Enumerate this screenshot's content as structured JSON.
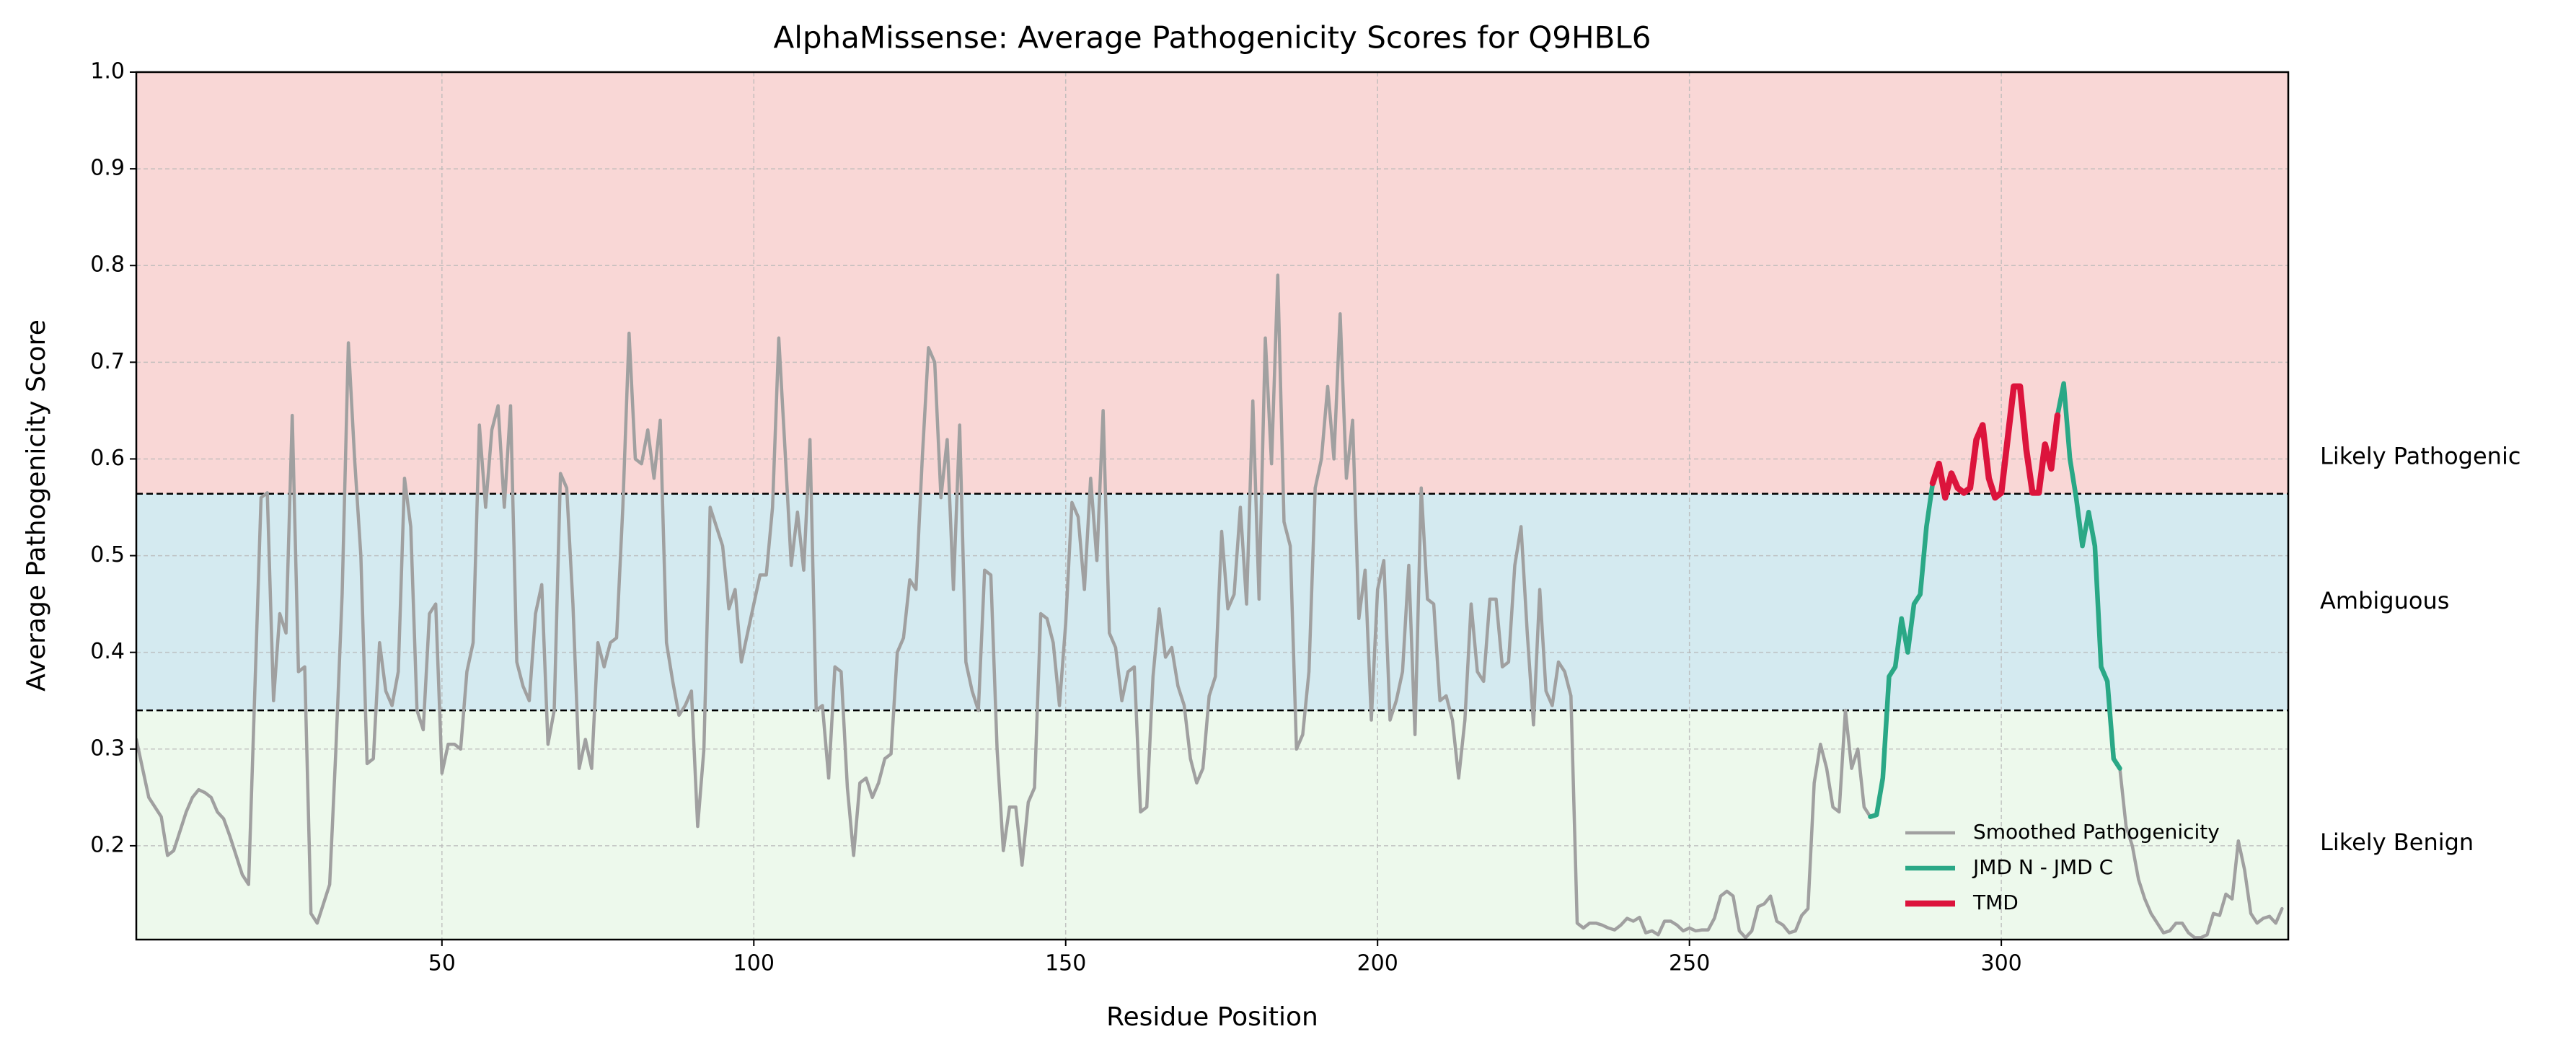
{
  "chart_data": {
    "type": "line",
    "title": "AlphaMissense: Average Pathogenicity Scores for Q9HBL6",
    "xlabel": "Residue Position",
    "ylabel": "Average Pathogenicity Score",
    "xlim": [
      1,
      346
    ],
    "ylim": [
      0.103,
      1.0
    ],
    "xticks": [
      50,
      100,
      150,
      200,
      250,
      300
    ],
    "yticks": [
      0.2,
      0.3,
      0.4,
      0.5,
      0.6,
      0.7,
      0.8,
      0.9,
      {
        "value": 1.0,
        "label": "1.0"
      }
    ],
    "grid": true,
    "legend": "lower right",
    "thresholds": [
      0.34,
      0.564
    ],
    "bands": [
      {
        "label": "Likely Benign",
        "color": "#edf9ec",
        "text_color": "#006400"
      },
      {
        "label": "Ambiguous",
        "color": "#d4eaf0",
        "text_color": "#000080"
      },
      {
        "label": "Likely Pathogenic",
        "color": "#f9d7d6",
        "text_color": "#8b0000"
      }
    ],
    "series": [
      {
        "name": "Smoothed Pathogenicity",
        "color": "#a0a0a0",
        "width": 4.5,
        "x": [
          1,
          2,
          3,
          4,
          5,
          6,
          7,
          8,
          9,
          10,
          11,
          12,
          13,
          14,
          15,
          16,
          17,
          18,
          19,
          20,
          21,
          22,
          23,
          24,
          25,
          26,
          27,
          28,
          29,
          30,
          31,
          32,
          33,
          34,
          35,
          36,
          37,
          38,
          39,
          40,
          41,
          42,
          43,
          44,
          45,
          46,
          47,
          48,
          49,
          50,
          51,
          52,
          53,
          54,
          55,
          56,
          57,
          58,
          59,
          60,
          61,
          62,
          63,
          64,
          65,
          66,
          67,
          68,
          69,
          70,
          71,
          72,
          73,
          74,
          75,
          76,
          77,
          78,
          79,
          80,
          81,
          82,
          83,
          84,
          85,
          86,
          87,
          88,
          89,
          90,
          91,
          92,
          93,
          94,
          95,
          96,
          97,
          98,
          99,
          100,
          101,
          102,
          103,
          104,
          105,
          106,
          107,
          108,
          109,
          110,
          111,
          112,
          113,
          114,
          115,
          116,
          117,
          118,
          119,
          120,
          121,
          122,
          123,
          124,
          125,
          126,
          127,
          128,
          129,
          130,
          131,
          132,
          133,
          134,
          135,
          136,
          137,
          138,
          139,
          140,
          141,
          142,
          143,
          144,
          145,
          146,
          147,
          148,
          149,
          150,
          151,
          152,
          153,
          154,
          155,
          156,
          157,
          158,
          159,
          160,
          161,
          162,
          163,
          164,
          165,
          166,
          167,
          168,
          169,
          170,
          171,
          172,
          173,
          174,
          175,
          176,
          177,
          178,
          179,
          180,
          181,
          182,
          183,
          184,
          185,
          186,
          187,
          188,
          189,
          190,
          191,
          192,
          193,
          194,
          195,
          196,
          197,
          198,
          199,
          200,
          201,
          202,
          203,
          204,
          205,
          206,
          207,
          208,
          209,
          210,
          211,
          212,
          213,
          214,
          215,
          216,
          217,
          218,
          219,
          220,
          221,
          222,
          223,
          224,
          225,
          226,
          227,
          228,
          229,
          230,
          231,
          232,
          233,
          234,
          235,
          236,
          237,
          238,
          239,
          240,
          241,
          242,
          243,
          244,
          245,
          246,
          247,
          248,
          249,
          250,
          251,
          252,
          253,
          254,
          255,
          256,
          257,
          258,
          259,
          260,
          261,
          262,
          263,
          264,
          265,
          266,
          267,
          268,
          269,
          270,
          271,
          272,
          273,
          274,
          275,
          276,
          277,
          278,
          279,
          280,
          281,
          282,
          283,
          284,
          285,
          286,
          287,
          288,
          289,
          290,
          291,
          292,
          293,
          294,
          295,
          296,
          297,
          298,
          299,
          300,
          301,
          302,
          303,
          304,
          305,
          306,
          307,
          308,
          309,
          310,
          311,
          312,
          313,
          314,
          315,
          316,
          317,
          318,
          319,
          320,
          321,
          322,
          323,
          324,
          325,
          326,
          327,
          328,
          329,
          330,
          331,
          332,
          333,
          334,
          335,
          336,
          337,
          338,
          339,
          340,
          341,
          342,
          343,
          344,
          345
        ],
        "values": [
          0.31,
          0.28,
          0.25,
          0.24,
          0.23,
          0.19,
          0.195,
          0.215,
          0.235,
          0.25,
          0.258,
          0.255,
          0.25,
          0.235,
          0.228,
          0.21,
          0.19,
          0.17,
          0.16,
          0.36,
          0.56,
          0.565,
          0.35,
          0.44,
          0.42,
          0.645,
          0.38,
          0.385,
          0.13,
          0.12,
          0.14,
          0.16,
          0.3,
          0.46,
          0.72,
          0.6,
          0.5,
          0.285,
          0.29,
          0.41,
          0.36,
          0.345,
          0.38,
          0.58,
          0.53,
          0.34,
          0.32,
          0.44,
          0.45,
          0.275,
          0.305,
          0.305,
          0.3,
          0.38,
          0.41,
          0.635,
          0.55,
          0.63,
          0.655,
          0.55,
          0.655,
          0.39,
          0.365,
          0.35,
          0.44,
          0.47,
          0.305,
          0.34,
          0.585,
          0.57,
          0.45,
          0.28,
          0.31,
          0.28,
          0.41,
          0.385,
          0.41,
          0.415,
          0.55,
          0.73,
          0.6,
          0.595,
          0.63,
          0.58,
          0.64,
          0.41,
          0.37,
          0.335,
          0.345,
          0.36,
          0.22,
          0.3,
          0.55,
          0.53,
          0.51,
          0.445,
          0.465,
          0.39,
          0.42,
          0.45,
          0.48,
          0.48,
          0.55,
          0.725,
          0.61,
          0.49,
          0.545,
          0.485,
          0.62,
          0.34,
          0.345,
          0.27,
          0.385,
          0.38,
          0.26,
          0.19,
          0.265,
          0.27,
          0.25,
          0.265,
          0.29,
          0.295,
          0.4,
          0.415,
          0.475,
          0.465,
          0.6,
          0.715,
          0.7,
          0.56,
          0.62,
          0.465,
          0.635,
          0.39,
          0.36,
          0.34,
          0.485,
          0.48,
          0.3,
          0.195,
          0.24,
          0.24,
          0.18,
          0.245,
          0.26,
          0.44,
          0.435,
          0.41,
          0.345,
          0.43,
          0.555,
          0.54,
          0.465,
          0.58,
          0.495,
          0.65,
          0.42,
          0.405,
          0.35,
          0.38,
          0.385,
          0.235,
          0.24,
          0.375,
          0.445,
          0.395,
          0.405,
          0.365,
          0.345,
          0.29,
          0.265,
          0.28,
          0.355,
          0.375,
          0.525,
          0.445,
          0.46,
          0.55,
          0.45,
          0.66,
          0.455,
          0.725,
          0.595,
          0.79,
          0.535,
          0.51,
          0.3,
          0.315,
          0.38,
          0.57,
          0.6,
          0.675,
          0.6,
          0.75,
          0.58,
          0.64,
          0.435,
          0.485,
          0.33,
          0.465,
          0.495,
          0.33,
          0.35,
          0.38,
          0.49,
          0.315,
          0.57,
          0.455,
          0.45,
          0.35,
          0.355,
          0.33,
          0.27,
          0.33,
          0.45,
          0.38,
          0.37,
          0.455,
          0.455,
          0.385,
          0.39,
          0.49,
          0.53,
          0.42,
          0.325,
          0.465,
          0.36,
          0.345,
          0.39,
          0.38,
          0.355,
          0.12,
          0.115,
          0.12,
          0.12,
          0.118,
          0.115,
          0.113,
          0.118,
          0.125,
          0.122,
          0.126,
          0.11,
          0.112,
          0.108,
          0.122,
          0.122,
          0.118,
          0.112,
          0.115,
          0.112,
          0.113,
          0.113,
          0.125,
          0.148,
          0.153,
          0.148,
          0.112,
          0.105,
          0.112,
          0.137,
          0.14,
          0.148,
          0.122,
          0.118,
          0.11,
          0.112,
          0.128,
          0.135,
          0.265,
          0.305,
          0.28,
          0.24,
          0.235,
          0.34,
          0.28,
          0.3,
          0.24,
          0.23,
          0.232,
          0.27,
          0.375,
          0.385,
          0.435,
          0.4,
          0.45,
          0.46,
          0.53,
          0.575,
          0.595,
          0.56,
          0.585,
          0.57,
          0.565,
          0.57,
          0.62,
          0.635,
          0.58,
          0.56,
          0.565,
          0.62,
          0.675,
          0.675,
          0.61,
          0.565,
          0.565,
          0.615,
          0.59,
          0.645,
          0.678,
          0.6,
          0.56,
          0.51,
          0.545,
          0.51,
          0.385,
          0.37,
          0.29,
          0.28,
          0.22,
          0.2,
          0.165,
          0.145,
          0.13,
          0.12,
          0.11,
          0.112,
          0.12,
          0.12,
          0.11,
          0.105,
          0.105,
          0.108,
          0.13,
          0.128,
          0.15,
          0.145,
          0.205,
          0.175,
          0.13,
          0.12,
          0.125,
          0.127,
          0.12,
          0.135
        ]
      },
      {
        "name": "JMD N - JMD C",
        "color": "#2aa886",
        "width": 6.5,
        "x": [
          279,
          280,
          281,
          282,
          283,
          284,
          285,
          286,
          287,
          288,
          289,
          290,
          291,
          292,
          293,
          294,
          295,
          296,
          297,
          298,
          299,
          300,
          301,
          302,
          303,
          304,
          305,
          306,
          307,
          308,
          309,
          310,
          311,
          312,
          313,
          314,
          315,
          316,
          317,
          318,
          319
        ],
        "values": [
          0.23,
          0.232,
          0.27,
          0.375,
          0.385,
          0.435,
          0.4,
          0.45,
          0.46,
          0.53,
          0.575,
          0.595,
          0.56,
          0.585,
          0.57,
          0.565,
          0.57,
          0.62,
          0.635,
          0.58,
          0.56,
          0.565,
          0.62,
          0.675,
          0.675,
          0.61,
          0.565,
          0.565,
          0.615,
          0.59,
          0.645,
          0.678,
          0.6,
          0.56,
          0.51,
          0.545,
          0.51,
          0.385,
          0.37,
          0.29,
          0.28
        ]
      },
      {
        "name": "TMD",
        "color": "#dc143c",
        "width": 8.5,
        "x": [
          289,
          290,
          291,
          292,
          293,
          294,
          295,
          296,
          297,
          298,
          299,
          300,
          301,
          302,
          303,
          304,
          305,
          306,
          307,
          308,
          309
        ],
        "values": [
          0.575,
          0.595,
          0.56,
          0.585,
          0.57,
          0.565,
          0.57,
          0.62,
          0.635,
          0.58,
          0.56,
          0.565,
          0.62,
          0.675,
          0.675,
          0.61,
          0.565,
          0.565,
          0.615,
          0.59,
          0.645
        ]
      }
    ]
  }
}
